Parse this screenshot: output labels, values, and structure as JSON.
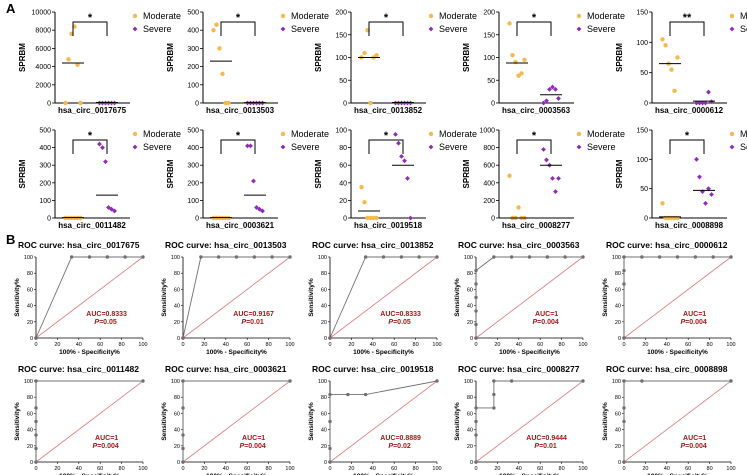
{
  "figure_labels": {
    "panel_a": "A",
    "panel_b": "B"
  },
  "colors": {
    "moderate": "#F5B94E",
    "severe": "#8E2BB8",
    "auc_text": "#A11919",
    "roc_curve": "#707070",
    "diagonal": "#E07A7A"
  },
  "chart_data": {
    "scatter_common": {
      "type": "scatter",
      "ylabel": "SPRBM",
      "legend": [
        "Moderate",
        "Severe"
      ]
    },
    "scatter": [
      {
        "circ": "hsa_circ_0017675",
        "ylim": [
          0,
          10000
        ],
        "ticks": [
          "0",
          "2000",
          "4000",
          "6000",
          "8000",
          "10000"
        ],
        "sig": "*",
        "moderate": [
          0,
          4800,
          7600,
          8400,
          4200,
          0
        ],
        "severe": [
          0,
          0,
          0,
          0,
          0,
          0
        ],
        "mean_moderate": 4400,
        "mean_severe": 50
      },
      {
        "circ": "hsa_circ_0013503",
        "ylim": [
          0,
          500
        ],
        "ticks": [
          "0",
          "100",
          "200",
          "300",
          "400",
          "500"
        ],
        "sig": "*",
        "moderate": [
          400,
          430,
          300,
          160,
          0,
          0
        ],
        "severe": [
          0,
          0,
          0,
          0,
          0,
          0
        ],
        "mean_moderate": 230,
        "mean_severe": 2
      },
      {
        "circ": "hsa_circ_0013852",
        "ylim": [
          0,
          200
        ],
        "ticks": [
          "0",
          "50",
          "100",
          "150",
          "200"
        ],
        "sig": "*",
        "moderate": [
          100,
          110,
          160,
          0,
          100,
          105
        ],
        "severe": [
          0,
          0,
          0,
          0,
          0,
          0
        ],
        "mean_moderate": 100,
        "mean_severe": 1
      },
      {
        "circ": "hsa_circ_0003563",
        "ylim": [
          0,
          200
        ],
        "ticks": [
          "0",
          "50",
          "100",
          "150",
          "200"
        ],
        "sig": "*",
        "moderate": [
          175,
          105,
          90,
          60,
          65,
          95
        ],
        "severe": [
          0,
          5,
          30,
          35,
          30,
          10
        ],
        "mean_moderate": 88,
        "mean_severe": 18
      },
      {
        "circ": "hsa_circ_0000612",
        "ylim": [
          0,
          150
        ],
        "ticks": [
          "0",
          "50",
          "100",
          "150"
        ],
        "sig": "**",
        "moderate": [
          105,
          95,
          65,
          55,
          20,
          75
        ],
        "severe": [
          0,
          0,
          0,
          0,
          18,
          2
        ],
        "mean_moderate": 65,
        "mean_severe": 3
      },
      {
        "circ": "hsa_circ_0011482",
        "ylim": [
          0,
          500
        ],
        "ticks": [
          "0",
          "100",
          "200",
          "300",
          "400",
          "500"
        ],
        "sig": "*",
        "moderate": [
          0,
          0,
          0,
          0,
          0,
          0
        ],
        "severe": [
          420,
          400,
          320,
          60,
          50,
          40
        ],
        "mean_moderate": 2,
        "mean_severe": 130
      },
      {
        "circ": "hsa_circ_0003621",
        "ylim": [
          0,
          500
        ],
        "ticks": [
          "0",
          "100",
          "200",
          "300",
          "400",
          "500"
        ],
        "sig": "*",
        "moderate": [
          0,
          0,
          0,
          0,
          0,
          0
        ],
        "severe": [
          410,
          410,
          210,
          60,
          50,
          40
        ],
        "mean_moderate": 2,
        "mean_severe": 130
      },
      {
        "circ": "hsa_circ_0019518",
        "ylim": [
          0,
          100
        ],
        "ticks": [
          "0",
          "20",
          "40",
          "60",
          "80",
          "100"
        ],
        "sig": "*",
        "moderate": [
          35,
          18,
          0,
          0,
          0,
          0
        ],
        "severe": [
          95,
          85,
          70,
          65,
          45,
          0
        ],
        "mean_moderate": 8,
        "mean_severe": 60
      },
      {
        "circ": "hsa_circ_0008277",
        "ylim": [
          0,
          1000
        ],
        "ticks": [
          "0",
          "200",
          "400",
          "600",
          "800",
          "1000"
        ],
        "sig": "*",
        "moderate": [
          480,
          0,
          0,
          120,
          0,
          0
        ],
        "severe": [
          780,
          660,
          600,
          450,
          300,
          450
        ],
        "mean_moderate": 0,
        "mean_severe": 600
      },
      {
        "circ": "hsa_circ_0008898",
        "ylim": [
          0,
          150
        ],
        "ticks": [
          "0",
          "50",
          "100",
          "150"
        ],
        "sig": "*",
        "moderate": [
          25,
          0,
          0,
          0,
          0,
          0
        ],
        "severe": [
          100,
          70,
          45,
          25,
          50,
          40
        ],
        "mean_moderate": 2,
        "mean_severe": 47
      }
    ],
    "roc_common": {
      "type": "line",
      "title_prefix": "ROC curve: ",
      "xlabel": "100% - Specificity%",
      "ylabel": "Sensitivity%",
      "xticks": [
        "0",
        "20",
        "40",
        "60",
        "80",
        "100"
      ],
      "yticks": [
        "0",
        "20",
        "40",
        "60",
        "80",
        "100"
      ],
      "xlim": [
        0,
        100
      ],
      "ylim": [
        0,
        100
      ]
    },
    "roc": [
      {
        "circ": "hsa_circ_0017675",
        "auc": "AUC=0.8333",
        "p": "=0.05",
        "x": [
          0,
          0,
          0,
          33.3,
          50,
          66.7,
          83.3,
          100
        ],
        "y": [
          0,
          0,
          0,
          100,
          100,
          100,
          100,
          100
        ]
      },
      {
        "circ": "hsa_circ_0013503",
        "auc": "AUC=0.9167",
        "p": "=0.01",
        "x": [
          0,
          0,
          16.7,
          33.3,
          50,
          66.7,
          83.3,
          100
        ],
        "y": [
          0,
          0,
          100,
          100,
          100,
          100,
          100,
          100
        ]
      },
      {
        "circ": "hsa_circ_0013852",
        "auc": "AUC=0.8333",
        "p": "=0.05",
        "x": [
          0,
          0,
          33.3,
          50,
          66.7,
          83.3,
          100
        ],
        "y": [
          0,
          0,
          100,
          100,
          100,
          100,
          100
        ]
      },
      {
        "circ": "hsa_circ_0003563",
        "auc": "AUC=1",
        "p": "=0.004",
        "x": [
          0,
          0,
          0,
          0,
          0,
          0,
          16.7,
          33.3,
          50,
          66.7,
          83.3,
          100
        ],
        "y": [
          0,
          16.7,
          33.3,
          50,
          66.7,
          83.3,
          100,
          100,
          100,
          100,
          100,
          100
        ]
      },
      {
        "circ": "hsa_circ_0000612",
        "auc": "AUC=1",
        "p": "=0.004",
        "x": [
          0,
          0,
          0,
          0,
          16.7,
          33.3,
          50,
          66.7,
          83.3,
          100
        ],
        "y": [
          0,
          66.7,
          83.3,
          100,
          100,
          100,
          100,
          100,
          100,
          100
        ]
      },
      {
        "circ": "hsa_circ_0011482",
        "auc": "AUC=1",
        "p": "=0.004",
        "x": [
          0,
          0,
          0,
          0,
          0,
          0,
          100
        ],
        "y": [
          0,
          16.7,
          33.3,
          50,
          66.7,
          100,
          100
        ]
      },
      {
        "circ": "hsa_circ_0003621",
        "auc": "AUC=1",
        "p": "=0.004",
        "x": [
          0,
          0,
          0,
          0,
          0,
          100
        ],
        "y": [
          0,
          16.7,
          33.3,
          66.7,
          100,
          100
        ]
      },
      {
        "circ": "hsa_circ_0019518",
        "auc": "AUC=0.8889",
        "p": "=0.02",
        "x": [
          0,
          0,
          0,
          0,
          16.7,
          33.3,
          100
        ],
        "y": [
          0,
          16.7,
          50,
          83.3,
          83.3,
          83.3,
          100
        ]
      },
      {
        "circ": "hsa_circ_0008277",
        "auc": "AUC=0.9444",
        "p": "=0.01",
        "x": [
          0,
          0,
          0,
          0,
          16.7,
          16.7,
          16.7,
          33.3,
          100
        ],
        "y": [
          0,
          33.3,
          50,
          66.7,
          66.7,
          83.3,
          100,
          100,
          100
        ]
      },
      {
        "circ": "hsa_circ_0008898",
        "auc": "AUC=1",
        "p": "=0.004",
        "x": [
          0,
          0,
          0,
          0,
          16.7,
          100
        ],
        "y": [
          0,
          50,
          66.7,
          100,
          100,
          100
        ]
      }
    ]
  }
}
